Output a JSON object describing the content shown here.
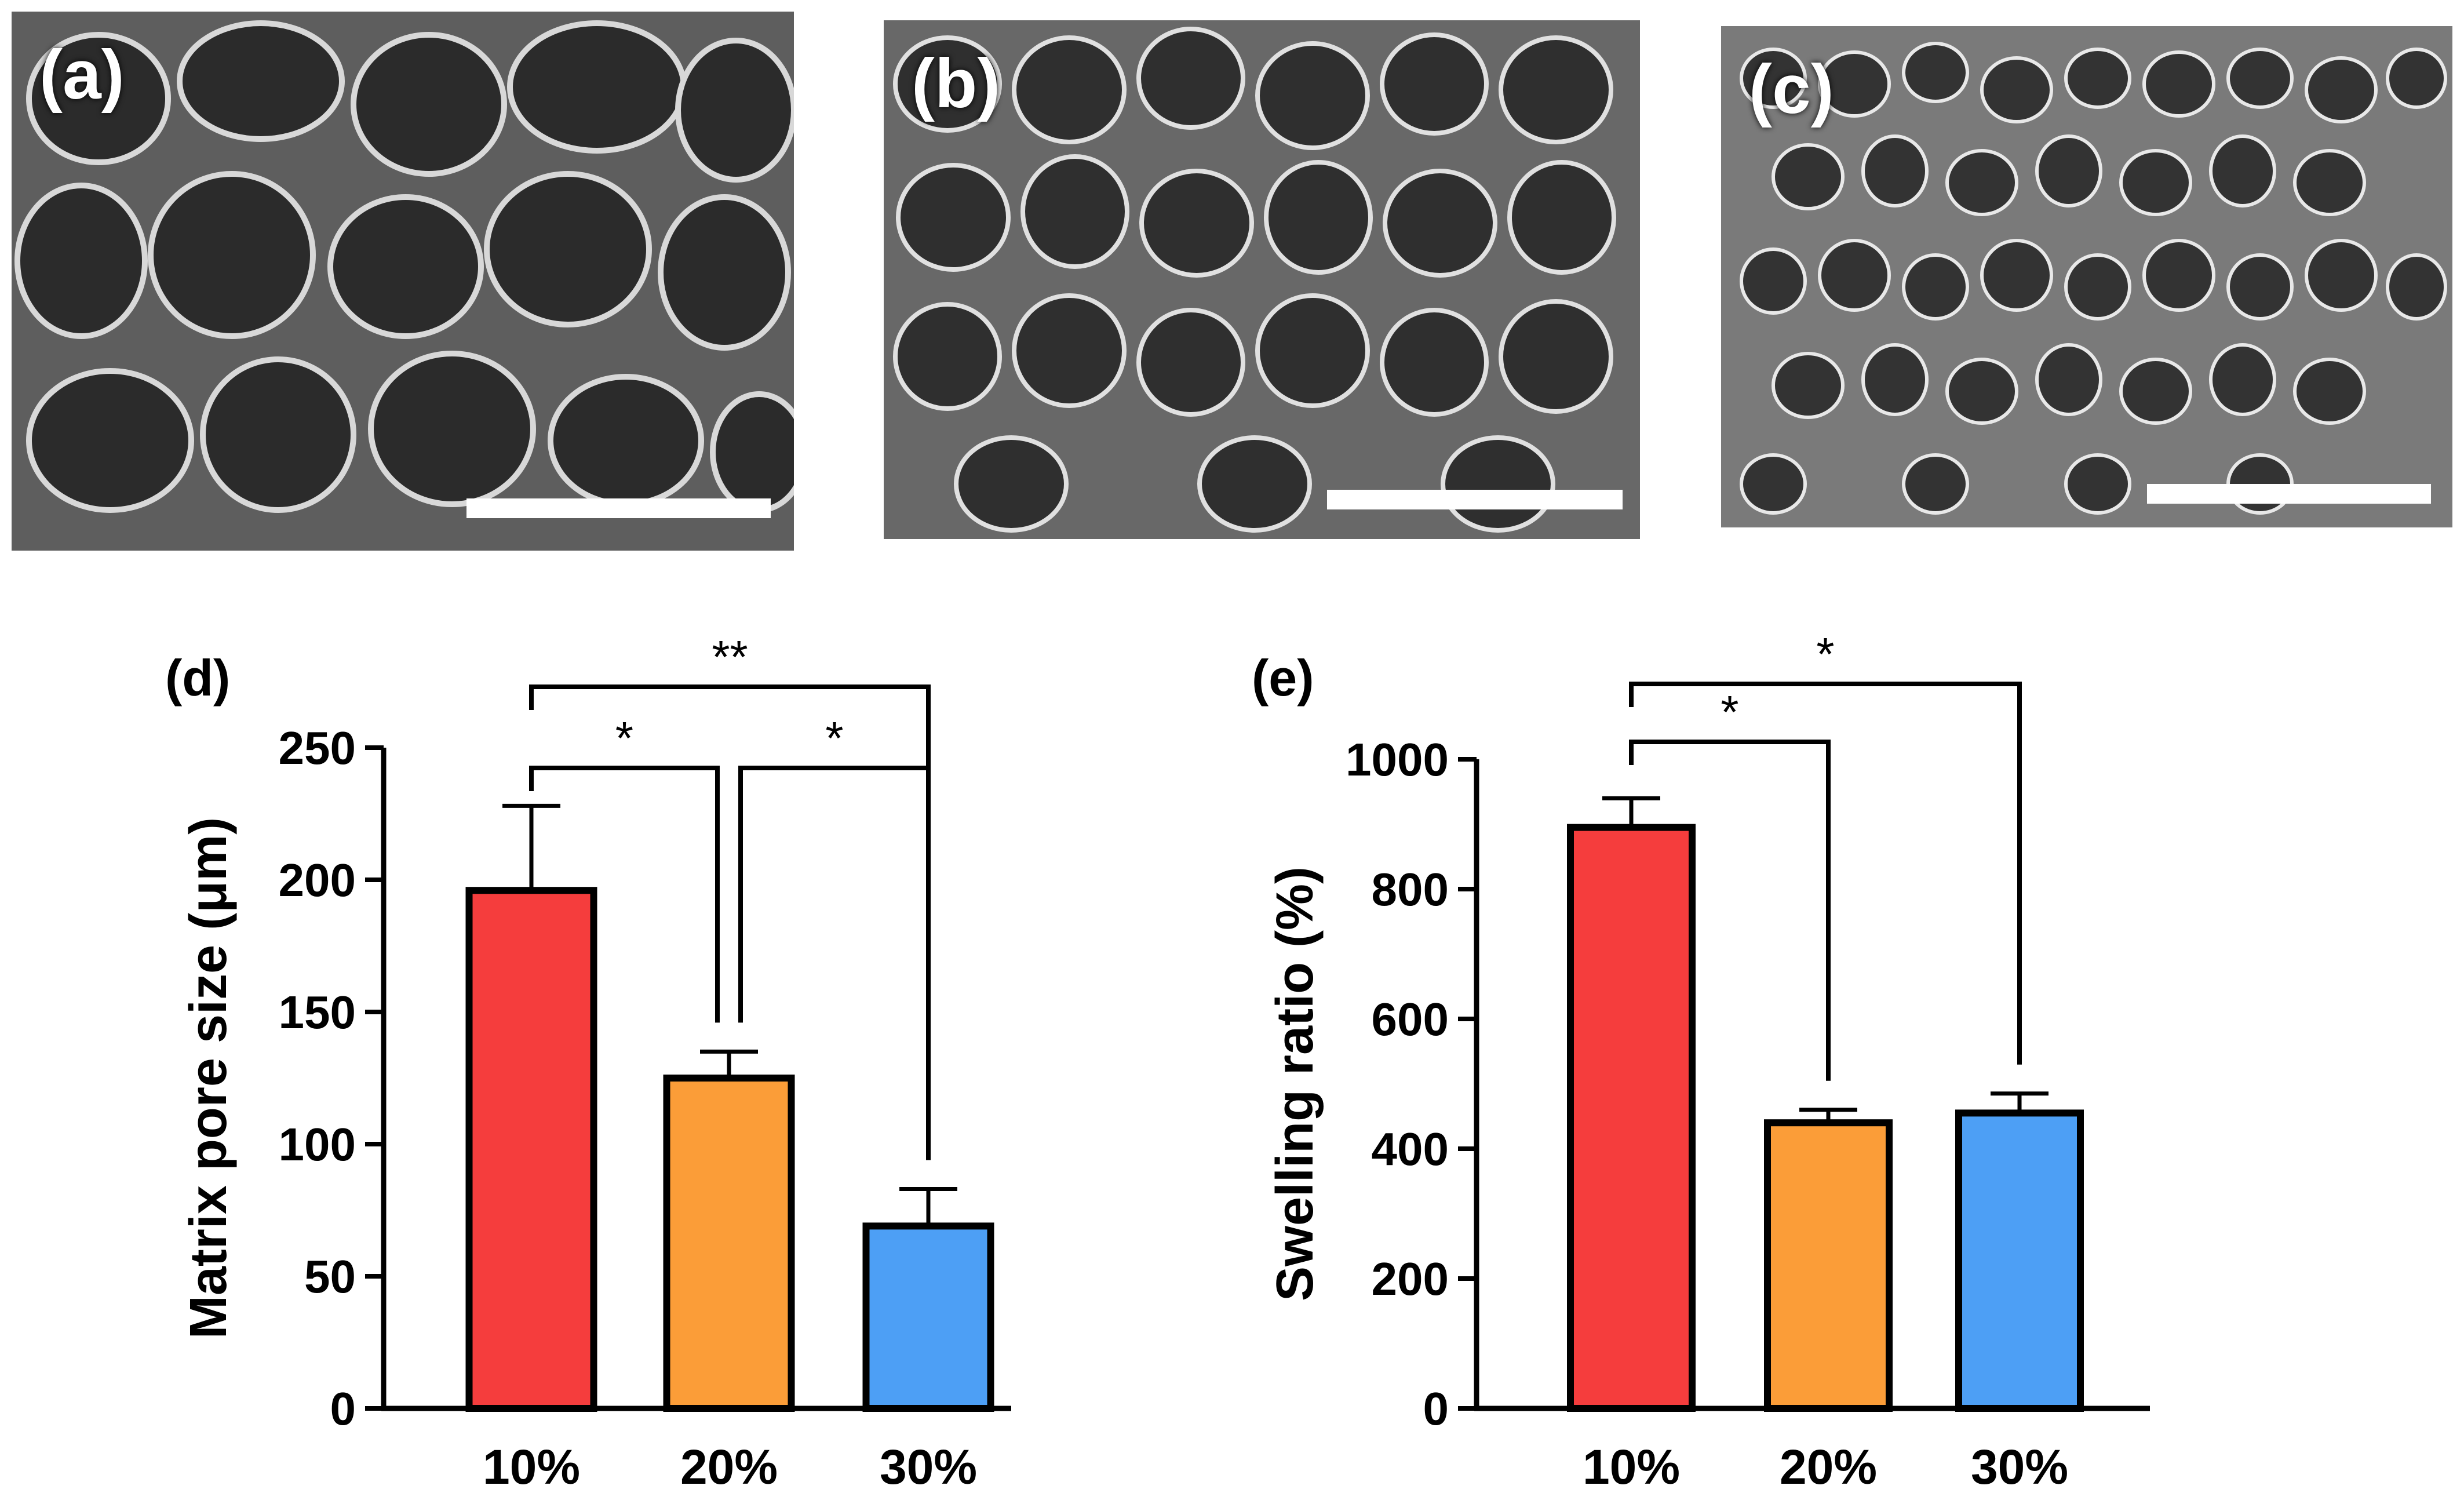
{
  "panels": {
    "a": {
      "label": "(a)"
    },
    "b": {
      "label": "(b)"
    },
    "c": {
      "label": "(c)"
    }
  },
  "colors": {
    "red": "#f53d3d",
    "orange": "#fb9d38",
    "blue": "#4d9ff5"
  },
  "chart_data": [
    {
      "type": "bar",
      "panel_label": "(d)",
      "categories": [
        "10%",
        "20%",
        "30%"
      ],
      "values": [
        196,
        125,
        69
      ],
      "errors": [
        32,
        10,
        14
      ],
      "bar_colors": [
        "#f53d3d",
        "#fb9d38",
        "#4d9ff5"
      ],
      "ylabel": "Matrix pore size (μm)",
      "xlabel": "",
      "ylim": [
        0,
        250
      ],
      "yticks": [
        0,
        50,
        100,
        150,
        200,
        250
      ],
      "yticklabels": [
        "0",
        "50",
        "100",
        "150",
        "200",
        "250"
      ],
      "significance": [
        {
          "from": 0,
          "to": 1,
          "label": "*",
          "level": 1
        },
        {
          "from": 1,
          "to": 2,
          "label": "*",
          "level": 1
        },
        {
          "from": 0,
          "to": 2,
          "label": "**",
          "level": 2
        }
      ]
    },
    {
      "type": "bar",
      "panel_label": "(e)",
      "categories": [
        "10%",
        "20%",
        "30%"
      ],
      "values": [
        895,
        440,
        455
      ],
      "errors": [
        45,
        20,
        30
      ],
      "bar_colors": [
        "#f53d3d",
        "#fb9d38",
        "#4d9ff5"
      ],
      "ylabel": "Swelling ratio (%)",
      "xlabel": "",
      "ylim": [
        0,
        1000
      ],
      "yticks": [
        0,
        200,
        400,
        600,
        800,
        1000
      ],
      "yticklabels": [
        "0",
        "200",
        "400",
        "600",
        "800",
        "1000"
      ],
      "significance": [
        {
          "from": 0,
          "to": 1,
          "label": "*",
          "level": 1
        },
        {
          "from": 0,
          "to": 2,
          "label": "*",
          "level": 2
        }
      ]
    }
  ]
}
